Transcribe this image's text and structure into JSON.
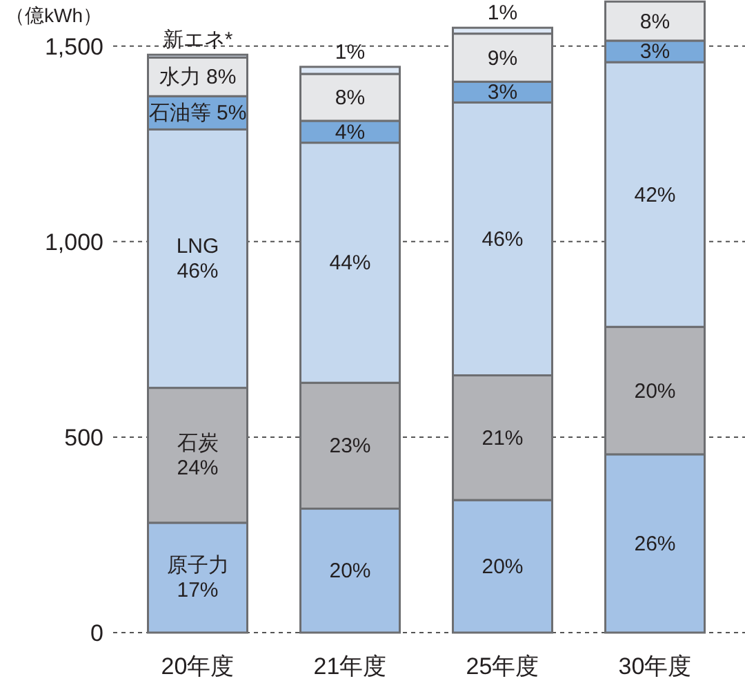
{
  "chart_data": {
    "type": "bar",
    "ylabel": "（億kWh）",
    "categories": [
      "20年度",
      "21年度",
      "25年度",
      "30年度"
    ],
    "stacked": true,
    "ylim": [
      0,
      1618
    ],
    "yticks": [
      0,
      500,
      {
        "value": 1000,
        "label": "1,000"
      },
      {
        "value": 1500,
        "label": "1,500"
      }
    ],
    "grid": "y",
    "series": [
      {
        "color": "#a4c2e6",
        "values": [
          281,
          317,
          339,
          456
        ]
      },
      {
        "color": "#b2b3b7",
        "values": [
          345,
          322,
          319,
          326
        ]
      },
      {
        "color": "#c5d8ee",
        "values": [
          661,
          614,
          698,
          677
        ]
      },
      {
        "color": "#7aaadb",
        "values": [
          85,
          56,
          53,
          55
        ]
      },
      {
        "color": "#e6e7e9",
        "values": [
          99,
          120,
          123,
          100
        ]
      },
      {
        "color": "#dde8f6",
        "values": [
          7,
          18,
          15,
          null
        ]
      }
    ],
    "annotations": [
      "原子力\n17%",
      "石炭\n24%",
      "LNG\n46%",
      "石油等 5%",
      "水力 8%",
      "新エネ*",
      "20%",
      "23%",
      "44%",
      "4%",
      "8%",
      "1%",
      "20%",
      "21%",
      "46%",
      "3%",
      "9%",
      "1%",
      "26%",
      "20%",
      "42%",
      "3%",
      "8%"
    ]
  }
}
